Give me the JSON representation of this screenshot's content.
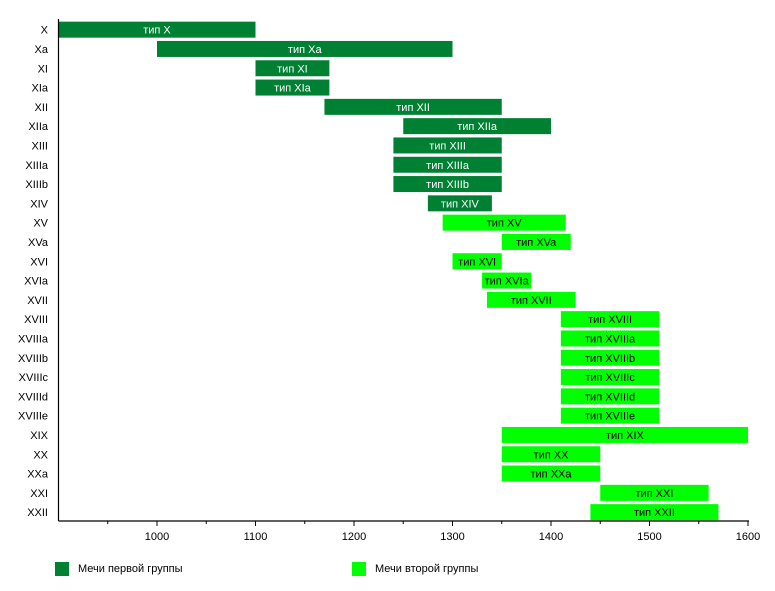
{
  "chart_data": {
    "type": "bar",
    "orientation": "horizontal-range",
    "title": "",
    "xlabel": "",
    "ylabel": "",
    "xlim": [
      900,
      1600
    ],
    "x_ticks": [
      1000,
      1100,
      1200,
      1300,
      1400,
      1500,
      1600
    ],
    "grid": false,
    "legend_position": "bottom",
    "series": [
      {
        "name": "Мечи первой группы",
        "color": "#008033"
      },
      {
        "name": "Мечи второй группы",
        "color": "#00ff00"
      }
    ],
    "rows": [
      {
        "category": "X",
        "label": "тип X",
        "start": 900,
        "end": 1100,
        "group": 0
      },
      {
        "category": "Xa",
        "label": "тип Xa",
        "start": 1000,
        "end": 1300,
        "group": 0
      },
      {
        "category": "XI",
        "label": "тип XI",
        "start": 1100,
        "end": 1175,
        "group": 0
      },
      {
        "category": "XIa",
        "label": "тип XIa",
        "start": 1100,
        "end": 1175,
        "group": 0
      },
      {
        "category": "XII",
        "label": "тип XII",
        "start": 1170,
        "end": 1350,
        "group": 0
      },
      {
        "category": "XIIa",
        "label": "тип XIIa",
        "start": 1250,
        "end": 1400,
        "group": 0
      },
      {
        "category": "XIII",
        "label": "тип XIII",
        "start": 1240,
        "end": 1350,
        "group": 0
      },
      {
        "category": "XIIIa",
        "label": "тип XIIIa",
        "start": 1240,
        "end": 1350,
        "group": 0
      },
      {
        "category": "XIIIb",
        "label": "тип XIIIb",
        "start": 1240,
        "end": 1350,
        "group": 0
      },
      {
        "category": "XIV",
        "label": "тип XIV",
        "start": 1275,
        "end": 1340,
        "group": 0
      },
      {
        "category": "XV",
        "label": "тип XV",
        "start": 1290,
        "end": 1415,
        "group": 1
      },
      {
        "category": "XVa",
        "label": "тип XVa",
        "start": 1350,
        "end": 1420,
        "group": 1
      },
      {
        "category": "XVI",
        "label": "тип XVI",
        "start": 1300,
        "end": 1350,
        "group": 1
      },
      {
        "category": "XVIa",
        "label": "тип XVIa",
        "start": 1330,
        "end": 1380,
        "group": 1
      },
      {
        "category": "XVII",
        "label": "тип XVII",
        "start": 1335,
        "end": 1425,
        "group": 1
      },
      {
        "category": "XVIII",
        "label": "тип XVIII",
        "start": 1410,
        "end": 1510,
        "group": 1
      },
      {
        "category": "XVIIIa",
        "label": "тип XVIIIa",
        "start": 1410,
        "end": 1510,
        "group": 1
      },
      {
        "category": "XVIIIb",
        "label": "тип XVIIIb",
        "start": 1410,
        "end": 1510,
        "group": 1
      },
      {
        "category": "XVIIIc",
        "label": "тип XVIIIc",
        "start": 1410,
        "end": 1510,
        "group": 1
      },
      {
        "category": "XVIIId",
        "label": "тип XVIIId",
        "start": 1410,
        "end": 1510,
        "group": 1
      },
      {
        "category": "XVIIIe",
        "label": "тип XVIIIe",
        "start": 1410,
        "end": 1510,
        "group": 1
      },
      {
        "category": "XIX",
        "label": "тип XIX",
        "start": 1350,
        "end": 1600,
        "group": 1
      },
      {
        "category": "XX",
        "label": "тип XX",
        "start": 1350,
        "end": 1450,
        "group": 1
      },
      {
        "category": "XXa",
        "label": "тип XXa",
        "start": 1350,
        "end": 1450,
        "group": 1
      },
      {
        "category": "XXI",
        "label": "тип XXI",
        "start": 1450,
        "end": 1560,
        "group": 1
      },
      {
        "category": "XXII",
        "label": "тип XXII",
        "start": 1440,
        "end": 1570,
        "group": 1
      }
    ]
  }
}
